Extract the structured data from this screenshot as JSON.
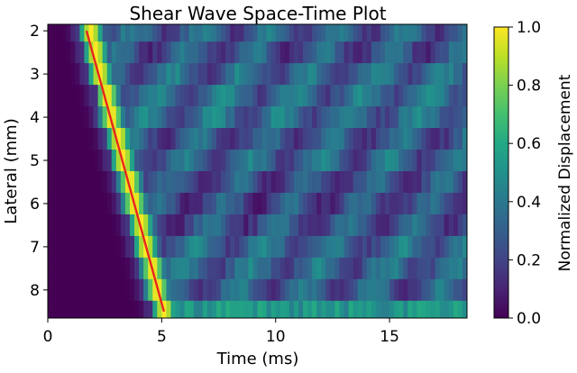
{
  "chart_data": {
    "type": "heatmap",
    "title": "Shear Wave Space-Time Plot",
    "xlabel": "Time (ms)",
    "ylabel": "Lateral (mm)",
    "xlim": [
      0,
      18.4
    ],
    "ylim": [
      8.65,
      1.85
    ],
    "x_ticks": [
      0,
      5,
      10,
      15
    ],
    "y_ticks": [
      2,
      3,
      4,
      5,
      6,
      7,
      8
    ],
    "lateral_rows_mm": [
      2.0,
      2.5,
      3.0,
      3.5,
      4.0,
      4.5,
      5.0,
      5.5,
      6.0,
      6.5,
      7.0,
      7.5,
      8.0,
      8.5
    ],
    "time_step_ms": 0.2,
    "colormap": "viridis",
    "colorbar": {
      "label": "Normalized Displacement",
      "range": [
        0.0,
        1.0
      ],
      "ticks": [
        "0.0",
        "0.2",
        "0.4",
        "0.6",
        "0.8",
        "1.0"
      ]
    },
    "peak_times_ms": [
      1.9,
      2.1,
      2.3,
      2.6,
      2.8,
      3.1,
      3.3,
      3.6,
      3.8,
      4.1,
      4.3,
      4.6,
      4.8,
      5.1
    ],
    "fit_line": {
      "color": "#e8251f",
      "points": [
        {
          "x": 1.7,
          "y": 2.0
        },
        {
          "x": 5.1,
          "y": 8.5
        }
      ]
    }
  }
}
